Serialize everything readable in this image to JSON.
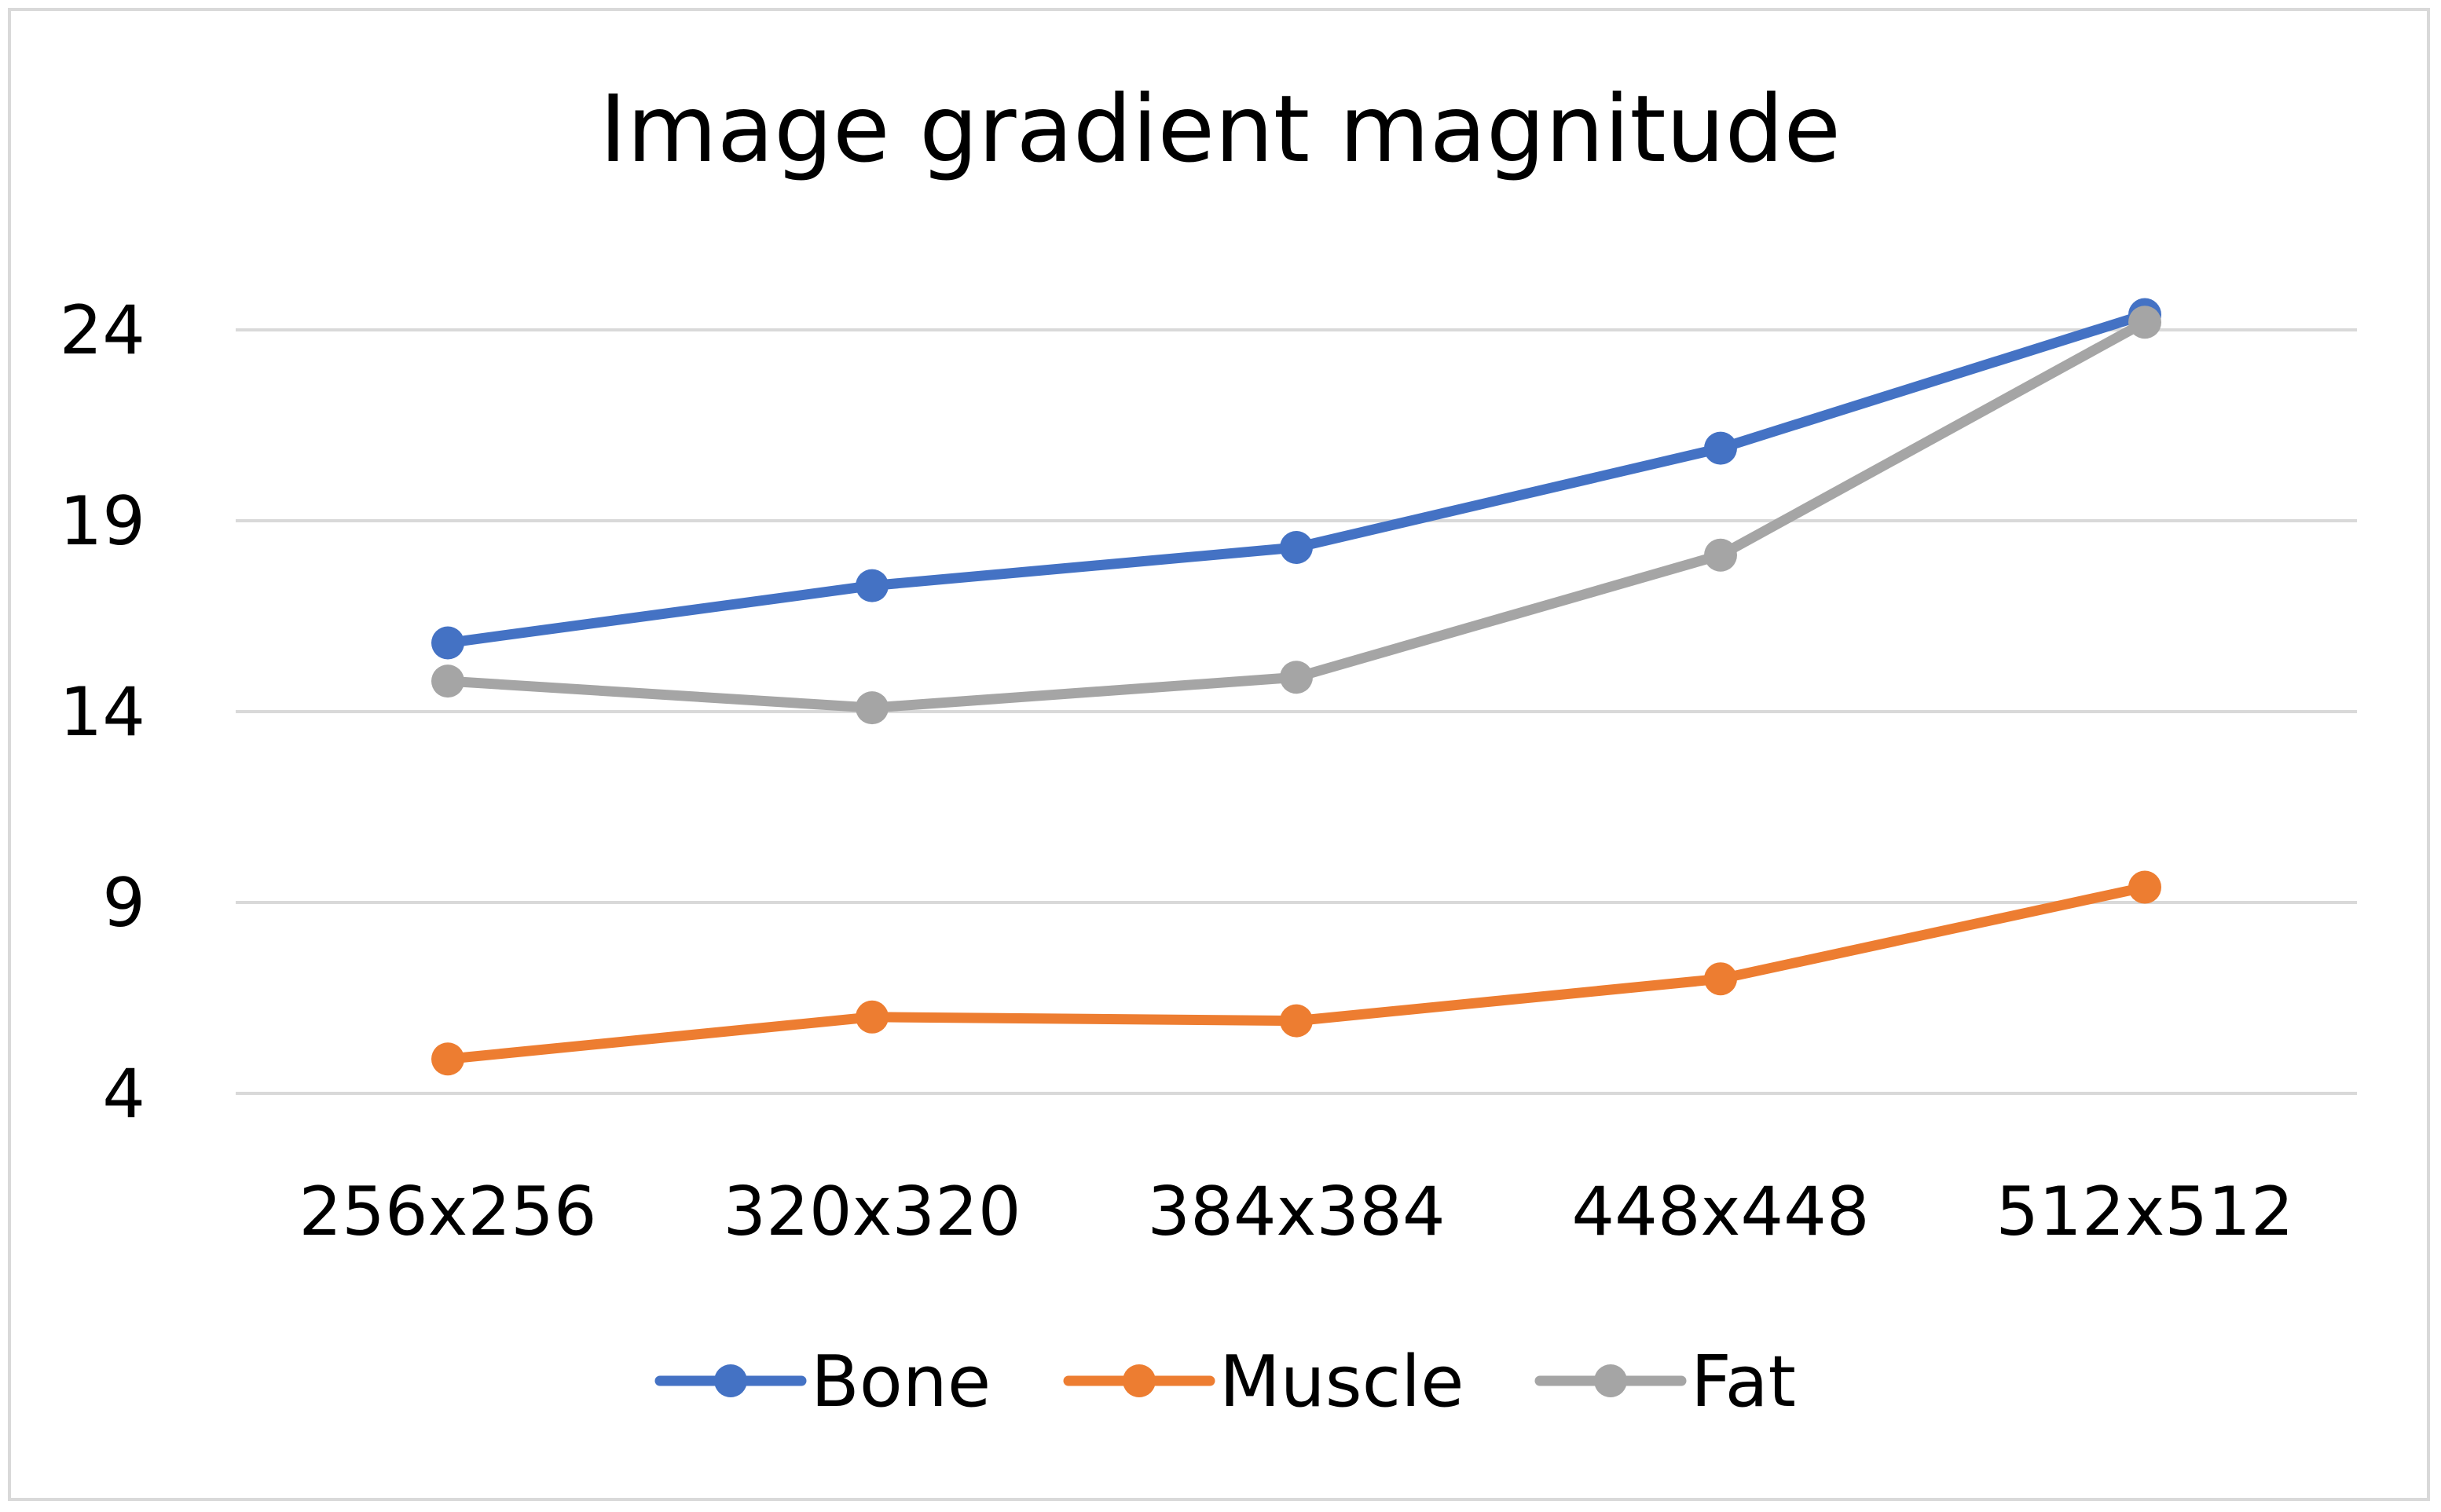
{
  "chart_data": {
    "type": "line",
    "title": "Image gradient magnitude",
    "xlabel": "",
    "ylabel": "",
    "categories": [
      "256x256",
      "320x320",
      "384x384",
      "448x448",
      "512x512"
    ],
    "yticks": [
      4,
      9,
      14,
      19,
      24
    ],
    "ylim": [
      4,
      24
    ],
    "grid": true,
    "legend_position": "bottom",
    "series": [
      {
        "name": "Bone",
        "color": "#4472C4",
        "values": [
          15.8,
          17.3,
          18.3,
          20.9,
          24.4
        ]
      },
      {
        "name": "Muscle",
        "color": "#ED7D31",
        "values": [
          4.9,
          6.0,
          5.9,
          7.0,
          9.4
        ]
      },
      {
        "name": "Fat",
        "color": "#A5A5A5",
        "values": [
          14.8,
          14.1,
          14.9,
          18.1,
          24.2
        ]
      }
    ]
  }
}
